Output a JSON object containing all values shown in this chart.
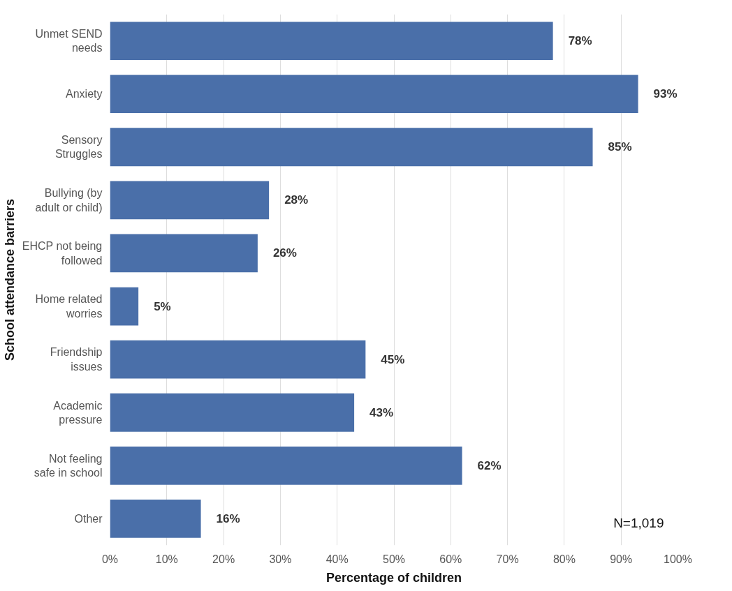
{
  "chart_data": {
    "type": "bar",
    "orientation": "horizontal",
    "xlabel": "Percentage of children",
    "ylabel": "School attendance barriers",
    "categories": [
      "Unmet SEND\nneeds",
      "Anxiety",
      "Sensory\nStruggles",
      "Bullying (by\nadult or child)",
      "EHCP not being\nfollowed",
      "Home related\nworries",
      "Friendship\nissues",
      "Academic\npressure",
      "Not feeling\nsafe in school",
      "Other"
    ],
    "values": [
      78,
      93,
      85,
      28,
      26,
      5,
      45,
      43,
      62,
      16
    ],
    "value_labels": [
      "78%",
      "93%",
      "85%",
      "28%",
      "26%",
      "5%",
      "45%",
      "43%",
      "62%",
      "16%"
    ],
    "color": "#4a6fa9",
    "xlim": [
      0,
      100
    ],
    "xticks": [
      {
        "value": 0,
        "label": "0%"
      },
      {
        "value": 10,
        "label": "10%"
      },
      {
        "value": 20,
        "label": "20%"
      },
      {
        "value": 30,
        "label": "30%"
      },
      {
        "value": 40,
        "label": "40%"
      },
      {
        "value": 50,
        "label": "50%"
      },
      {
        "value": 60,
        "label": "60%"
      },
      {
        "value": 70,
        "label": "70%"
      },
      {
        "value": 80,
        "label": "80%"
      },
      {
        "value": 90,
        "label": "90%"
      },
      {
        "value": 100,
        "label": "100%"
      }
    ],
    "grid": "x",
    "annotations": [
      "N=1,019"
    ]
  }
}
